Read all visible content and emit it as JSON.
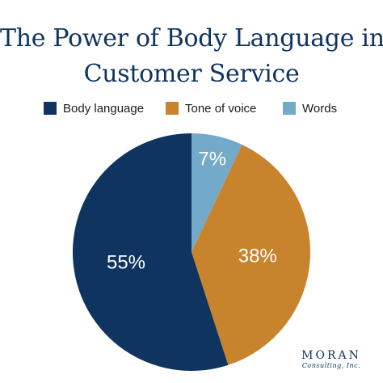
{
  "chart_data": {
    "type": "pie",
    "title_lines": [
      "The Power of Body Language in",
      "Customer Service"
    ],
    "categories": [
      "Words",
      "Tone of voice",
      "Body language"
    ],
    "values": [
      7,
      38,
      55
    ],
    "value_labels": [
      "7%",
      "38%",
      "55%"
    ],
    "colors": [
      "#74aac9",
      "#c8832d",
      "#0f3460"
    ],
    "start_angle_deg": 0,
    "direction": "clockwise",
    "legend": {
      "position": "top",
      "entries": [
        {
          "label": "Body language",
          "color": "#0f3460"
        },
        {
          "label": "Tone of voice",
          "color": "#c8832d"
        },
        {
          "label": "Words",
          "color": "#74aac9"
        }
      ]
    }
  },
  "branding": {
    "name": "MORAN",
    "subtitle": "Consulting, Inc."
  }
}
